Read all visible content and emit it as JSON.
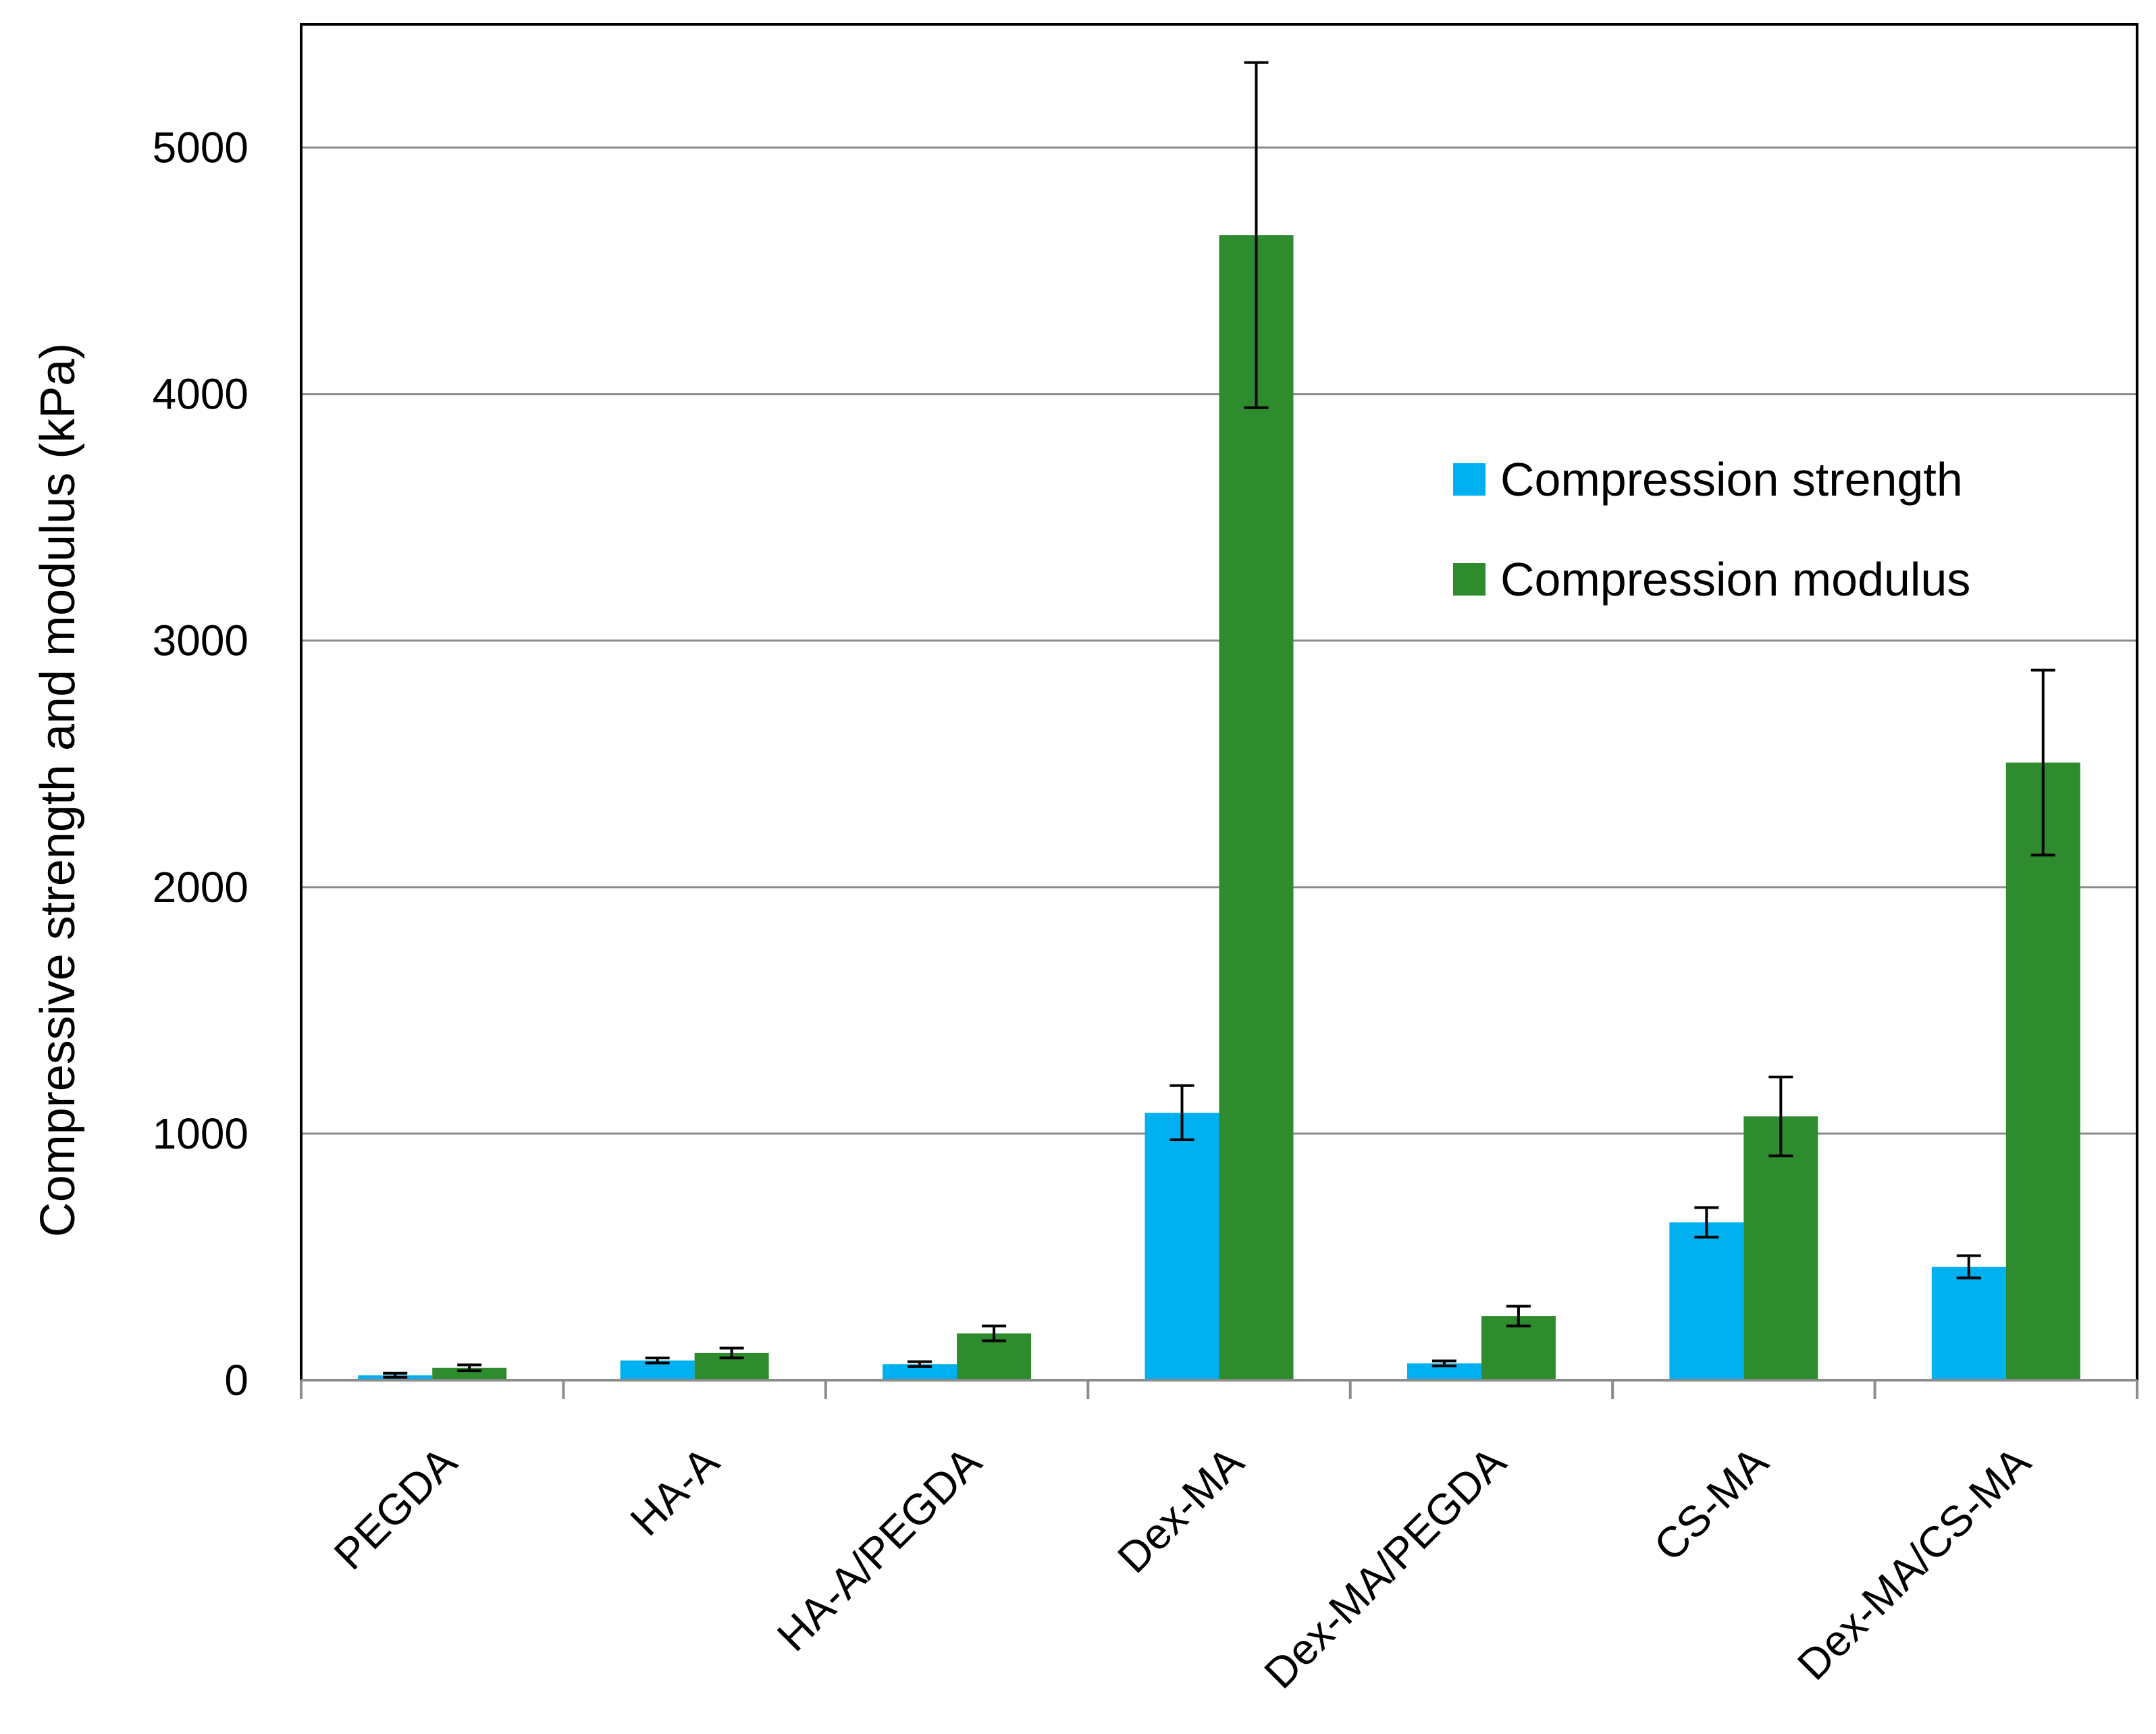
{
  "chart_data": {
    "type": "bar",
    "title": "",
    "xlabel": "",
    "ylabel": "Compressive strength and modulus  (kPa)",
    "ylim": [
      0,
      5500
    ],
    "yticks": [
      0,
      1000,
      2000,
      3000,
      4000,
      5000
    ],
    "ytick_labels": [
      "0",
      "1000",
      "2000",
      "3000",
      "4000",
      "5000"
    ],
    "grid": true,
    "legend": "right, upper-middle, inside plot",
    "categories": [
      "PEGDA",
      "HA-A",
      "HA-A/PEGDA",
      "Dex-MA",
      "Dex-MA/PEGDA",
      "CS-MA",
      "Dex-MA/CS-MA"
    ],
    "series": [
      {
        "name": "Compression strength",
        "color": "#00B0F0",
        "values": [
          20,
          80,
          65,
          1085,
          68,
          640,
          460
        ],
        "errors": [
          8,
          10,
          10,
          110,
          10,
          60,
          45
        ]
      },
      {
        "name": "Compression modulus",
        "color": "#2E8B2E",
        "values": [
          50,
          110,
          190,
          4645,
          260,
          1070,
          2505
        ],
        "errors": [
          12,
          20,
          30,
          700,
          40,
          160,
          375
        ]
      }
    ]
  }
}
